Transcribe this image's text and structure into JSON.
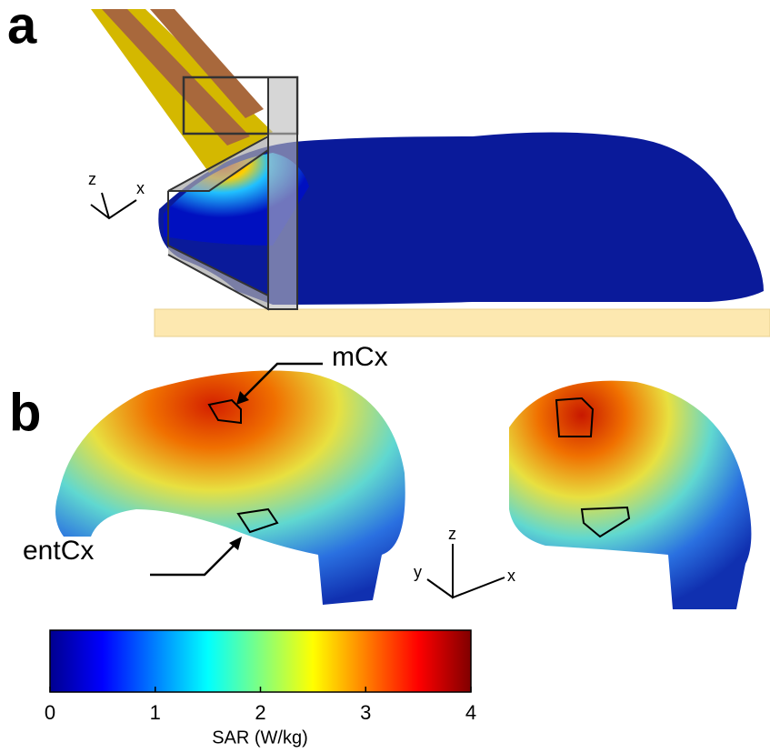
{
  "panel_a": {
    "label": "a",
    "axes": {
      "z": "z",
      "x": "x"
    }
  },
  "panel_b": {
    "label": "b",
    "labels": [
      "mCx",
      "entCx"
    ],
    "axes": {
      "z": "z",
      "x": "x",
      "y": "y"
    }
  },
  "colorbar": {
    "label": "SAR (W/kg)",
    "lim": [
      0,
      4
    ],
    "ticks": [
      0,
      1,
      2,
      3,
      4
    ]
  }
}
